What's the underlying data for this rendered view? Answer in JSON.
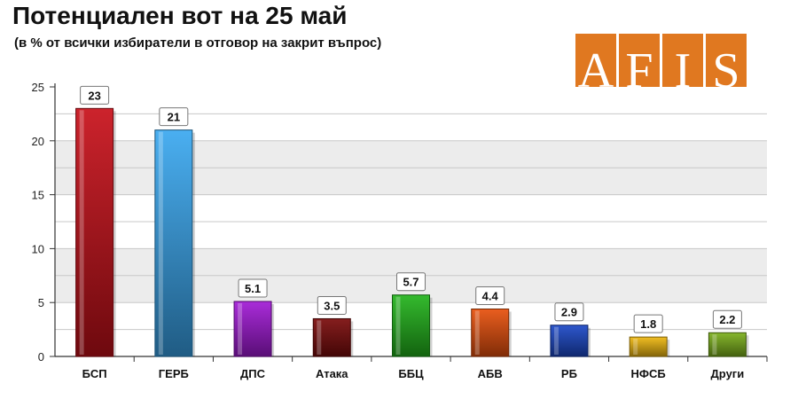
{
  "header": {
    "title": "Потенциален вот на 25 май",
    "subtitle": "(в % от всички избиратели в отговор на закрит въпрос)"
  },
  "logo": {
    "letters": [
      "A",
      "F",
      "I",
      "S"
    ],
    "color": "#e07820"
  },
  "chart_data": {
    "type": "bar",
    "title": "Потенциален вот на 25 май",
    "subtitle": "(в % от всички избиратели в отговор на закрит въпрос)",
    "categories": [
      "БСП",
      "ГЕРБ",
      "ДПС",
      "Атака",
      "ББЦ",
      "АБВ",
      "РБ",
      "НФСБ",
      "Други"
    ],
    "values": [
      23,
      21,
      5.1,
      3.5,
      5.7,
      4.4,
      2.9,
      1.8,
      2.2
    ],
    "value_labels": [
      "23",
      "21",
      "5.1",
      "3.5",
      "5.7",
      "4.4",
      "2.9",
      "1.8",
      "2.2"
    ],
    "colors": [
      "#c8101a",
      "#3aa8f0",
      "#a21ad6",
      "#7a0a0a",
      "#22b41c",
      "#e8500c",
      "#1c48c8",
      "#f0b810",
      "#7cb01c"
    ],
    "ylim": [
      0,
      25
    ],
    "yticks": [
      0,
      5,
      10,
      15,
      20,
      25
    ],
    "xlabel": "",
    "ylabel": "",
    "grid": true,
    "legend": "none"
  }
}
